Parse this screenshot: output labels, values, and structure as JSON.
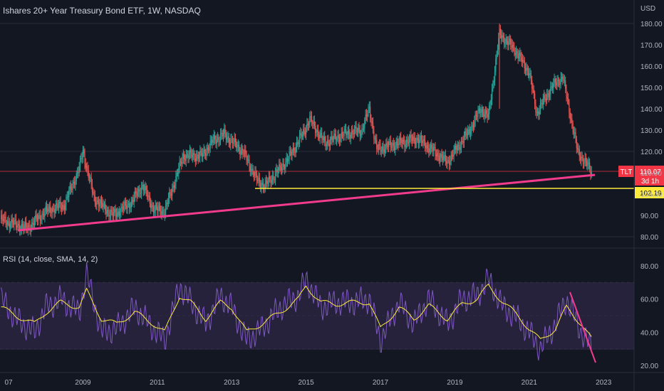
{
  "header": {
    "title": "Ishares 20+ Year Treasury Bond ETF, 1W, NASDAQ",
    "currency": "USD"
  },
  "price_panel": {
    "y_ticks": [
      "180.00",
      "170.00",
      "160.00",
      "150.00",
      "140.00",
      "130.00",
      "120.00",
      "110.00",
      "100.00",
      "90.00",
      "80.00"
    ],
    "ticker_label": "TLT",
    "last_price": "110.07",
    "countdown": "3d 1h",
    "support_label": "102.19",
    "colors": {
      "up": "#26a69a",
      "down": "#ef5350",
      "trendline": "#f23b8c",
      "support": "#ffeb3b",
      "last_price": "#f23645"
    }
  },
  "rsi_panel": {
    "title": "RSI (14, close, SMA, 14, 2)",
    "y_ticks": [
      "80.00",
      "60.00",
      "40.00",
      "20.00"
    ],
    "colors": {
      "rsi": "#7e57c2",
      "sma": "#ffeb3b",
      "band": "#2a2540",
      "trendline": "#f23b8c"
    }
  },
  "x_axis": {
    "ticks": [
      "07",
      "2009",
      "2011",
      "2013",
      "2015",
      "2017",
      "2019",
      "2021",
      "2023"
    ]
  },
  "chart_data": [
    {
      "type": "line",
      "title": "Ishares 20+ Year Treasury Bond ETF, 1W, NASDAQ",
      "x": [
        2006.8,
        2007.5,
        2008.0,
        2008.5,
        2008.9,
        2009.0,
        2009.3,
        2009.8,
        2010.3,
        2010.6,
        2010.9,
        2011.2,
        2011.7,
        2012.2,
        2012.5,
        2012.8,
        2013.3,
        2013.7,
        2013.9,
        2014.5,
        2014.9,
        2015.1,
        2015.5,
        2016.0,
        2016.5,
        2016.7,
        2016.9,
        2017.5,
        2018.0,
        2018.8,
        2019.4,
        2019.7,
        2019.9,
        2020.2,
        2020.6,
        2021.0,
        2021.2,
        2021.6,
        2021.9,
        2022.3,
        2022.7
      ],
      "y": [
        88,
        84,
        92,
        95,
        112,
        120,
        98,
        90,
        96,
        104,
        93,
        92,
        118,
        118,
        125,
        128,
        120,
        106,
        104,
        116,
        128,
        135,
        124,
        128,
        130,
        140,
        121,
        124,
        126,
        115,
        130,
        140,
        136,
        175,
        168,
        157,
        138,
        150,
        155,
        120,
        110
      ],
      "ylim": [
        76,
        183
      ],
      "series": [
        {
          "name": "TLT",
          "values": [
            88,
            84,
            92,
            95,
            112,
            120,
            98,
            90,
            96,
            104,
            93,
            92,
            118,
            118,
            125,
            128,
            120,
            106,
            104,
            116,
            128,
            135,
            124,
            128,
            130,
            140,
            121,
            124,
            126,
            115,
            130,
            140,
            136,
            175,
            168,
            157,
            138,
            150,
            155,
            120,
            110
          ]
        }
      ],
      "annotations": [
        "TLT 110.07",
        "102.19 support"
      ]
    },
    {
      "type": "line",
      "title": "RSI (14, close, SMA, 14, 2)",
      "x": [
        2006.8,
        2007.2,
        2007.7,
        2008.0,
        2008.4,
        2008.9,
        2009.1,
        2009.5,
        2009.9,
        2010.4,
        2010.9,
        2011.2,
        2011.6,
        2011.9,
        2012.3,
        2012.7,
        2013.0,
        2013.4,
        2013.8,
        2014.3,
        2014.8,
        2015.0,
        2015.4,
        2015.8,
        2016.3,
        2016.7,
        2017.0,
        2017.5,
        2017.9,
        2018.3,
        2018.8,
        2019.2,
        2019.6,
        2019.9,
        2020.3,
        2020.7,
        2021.0,
        2021.3,
        2021.7,
        2022.0,
        2022.4,
        2022.7
      ],
      "y": [
        60,
        48,
        40,
        55,
        60,
        52,
        75,
        40,
        42,
        55,
        42,
        35,
        68,
        58,
        45,
        62,
        55,
        35,
        42,
        55,
        62,
        72,
        55,
        58,
        58,
        60,
        35,
        58,
        45,
        60,
        45,
        60,
        62,
        72,
        55,
        48,
        40,
        30,
        45,
        60,
        40,
        30
      ],
      "ylim": [
        15,
        87
      ],
      "series": [
        {
          "name": "RSI",
          "values": [
            60,
            48,
            40,
            55,
            60,
            52,
            75,
            40,
            42,
            55,
            42,
            35,
            68,
            58,
            45,
            62,
            55,
            35,
            42,
            55,
            62,
            72,
            55,
            58,
            58,
            60,
            35,
            58,
            45,
            60,
            45,
            60,
            62,
            72,
            55,
            48,
            40,
            30,
            45,
            60,
            40,
            30
          ]
        },
        {
          "name": "SMA",
          "values": [
            55,
            50,
            45,
            52,
            58,
            55,
            65,
            48,
            45,
            52,
            45,
            40,
            62,
            58,
            48,
            58,
            55,
            40,
            45,
            52,
            60,
            68,
            58,
            57,
            58,
            58,
            42,
            55,
            48,
            56,
            48,
            57,
            60,
            68,
            58,
            50,
            42,
            35,
            42,
            55,
            45,
            35
          ]
        }
      ]
    }
  ]
}
